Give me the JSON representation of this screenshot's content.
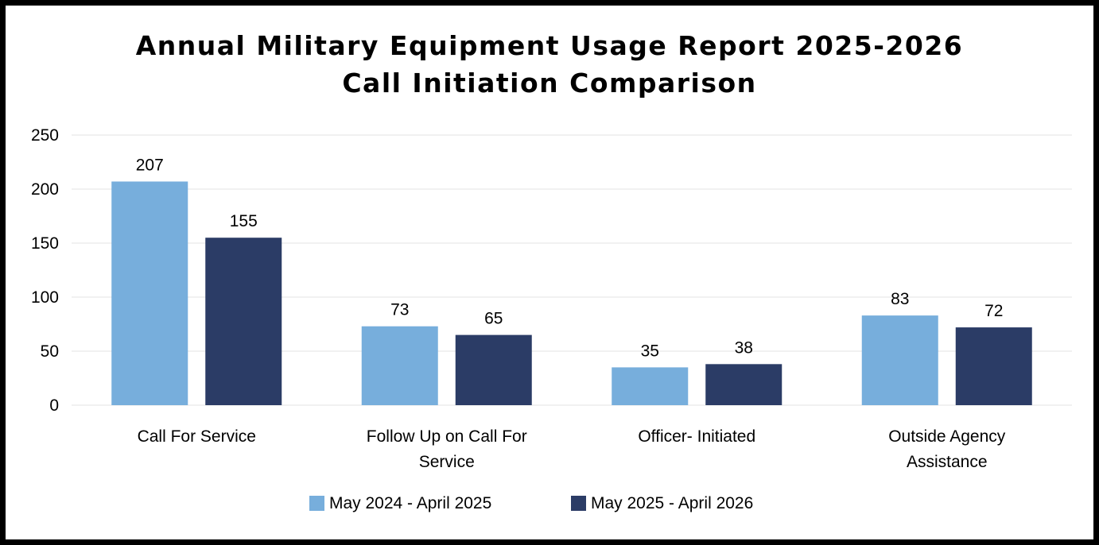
{
  "chart_data": {
    "type": "bar",
    "title": "Annual Military Equipment Usage Report 2025-2026",
    "subtitle": "Call Initiation Comparison",
    "categories": [
      [
        "Call For Service"
      ],
      [
        "Follow Up on Call For",
        "Service"
      ],
      [
        "Officer- Initiated"
      ],
      [
        "Outside Agency",
        "Assistance"
      ]
    ],
    "series": [
      {
        "name": "May 2024 - April 2025",
        "color": "#77aedc",
        "values": [
          207,
          73,
          35,
          83
        ]
      },
      {
        "name": "May 2025 - April 2026",
        "color": "#2b3c66",
        "values": [
          155,
          65,
          38,
          72
        ]
      }
    ],
    "ylim": [
      0,
      250
    ],
    "yticks": [
      0,
      50,
      100,
      150,
      200,
      250
    ],
    "xlabel": "",
    "ylabel": "",
    "grid": true,
    "gridline_color": "#e3e3e3",
    "legend_position": "bottom",
    "data_labels": true
  }
}
